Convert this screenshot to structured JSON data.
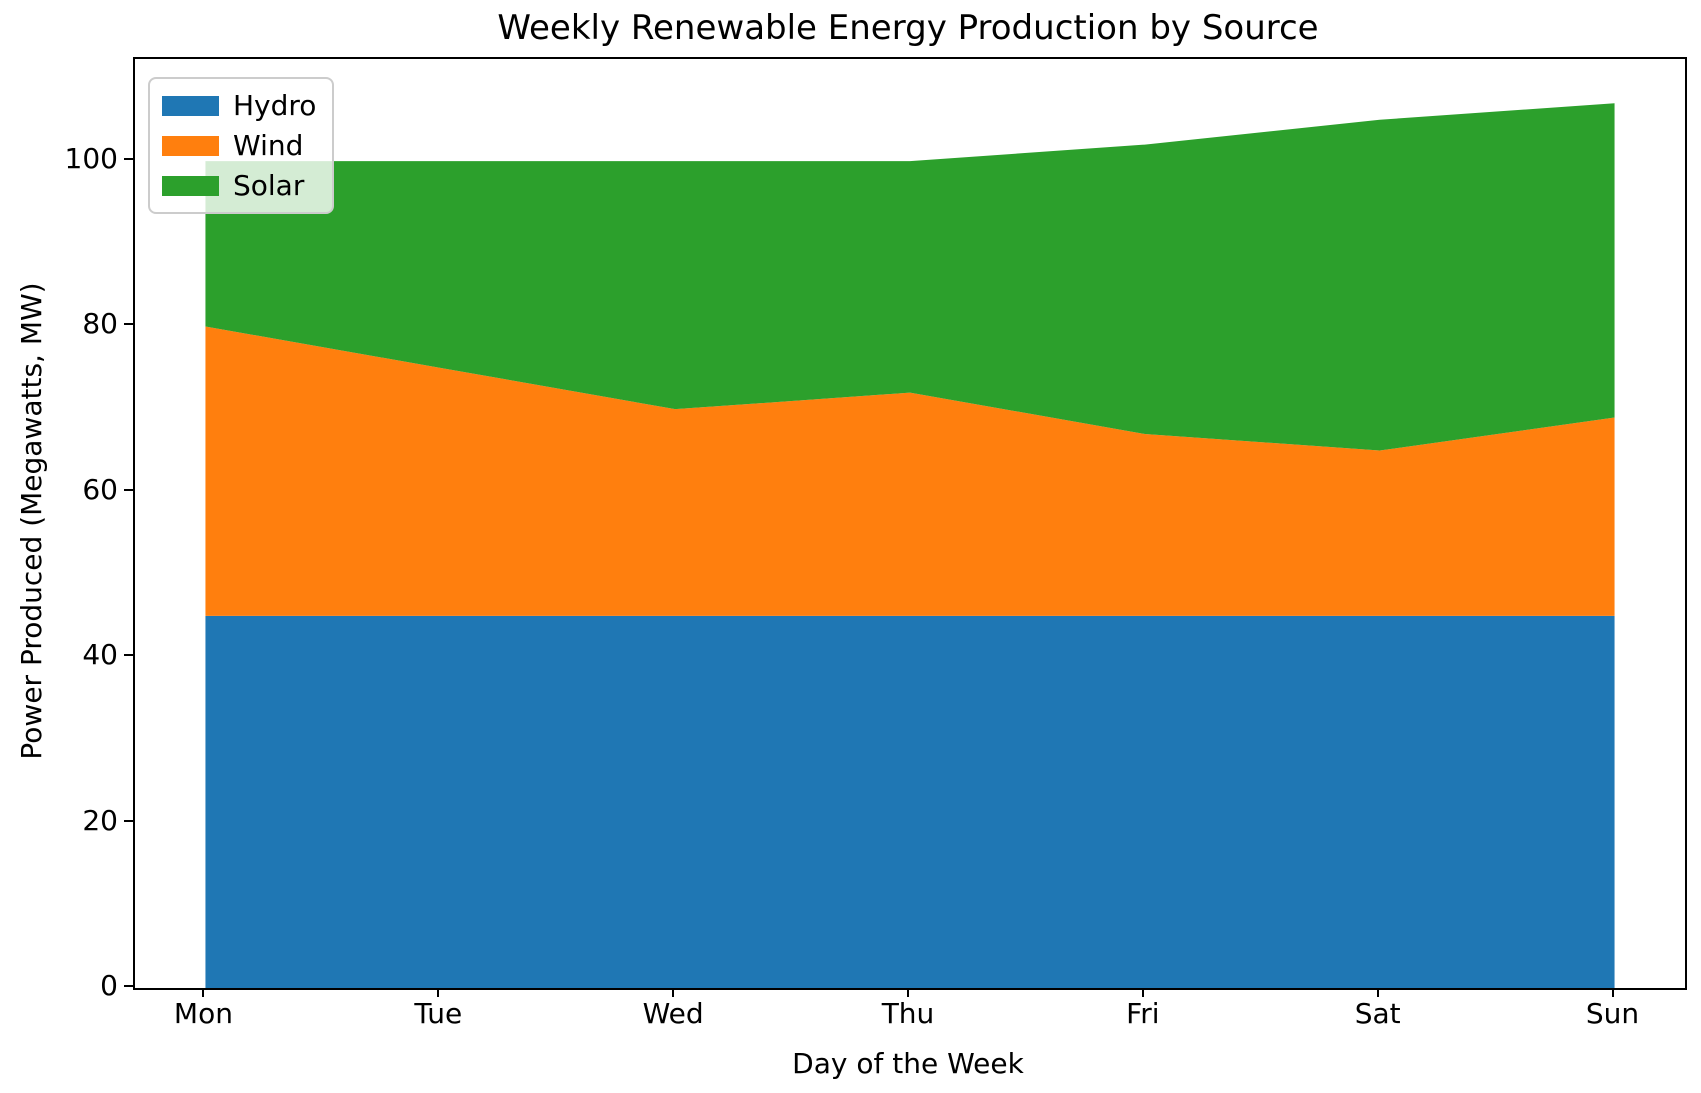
{
  "title": "Weekly Renewable Energy Production by Source",
  "chart_data": {
    "type": "area",
    "stacked": true,
    "title": "Weekly Renewable Energy Production by Source",
    "categories": [
      "Mon",
      "Tue",
      "Wed",
      "Thu",
      "Fri",
      "Sat",
      "Sun"
    ],
    "series": [
      {
        "name": "Hydro",
        "color": "#1f77b4",
        "values": [
          45,
          45,
          45,
          45,
          45,
          45,
          45
        ]
      },
      {
        "name": "Wind",
        "color": "#ff7f0e",
        "values": [
          35,
          30,
          25,
          27,
          22,
          20,
          24
        ]
      },
      {
        "name": "Solar",
        "color": "#2ca02c",
        "values": [
          20,
          25,
          30,
          28,
          35,
          40,
          38
        ]
      }
    ],
    "stacked_totals": [
      100,
      100,
      100,
      100,
      102,
      105,
      107
    ],
    "xlabel": "Day of the Week",
    "ylabel": "Power Produced (Megawatts, MW)",
    "yticks": [
      0,
      20,
      40,
      60,
      80,
      100
    ],
    "ylim": [
      0,
      112.35
    ],
    "x_margin": 0.05,
    "grid": false,
    "legend_position": "upper left",
    "spine_color": "#000000",
    "background_color": "#ffffff"
  }
}
